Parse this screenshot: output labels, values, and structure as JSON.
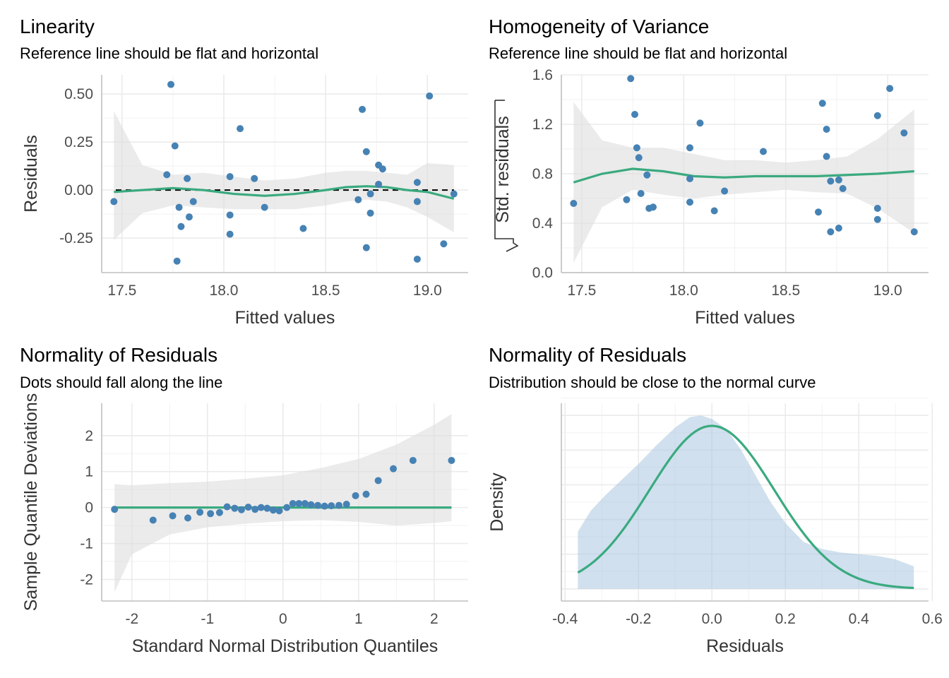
{
  "colors": {
    "point": "#4682b4",
    "line": "#3aaa7f",
    "ribbon": "#dddddd",
    "density_fill": "#a9c6e0",
    "reference": "#000000"
  },
  "chart_data": [
    {
      "type": "scatter",
      "title": "Linearity",
      "subtitle": "Reference line should be flat and horizontal",
      "xlabel": "Fitted values",
      "ylabel": "Residuals",
      "xlim": [
        17.4,
        19.2
      ],
      "ylim": [
        -0.43,
        0.6
      ],
      "xticks": [
        17.5,
        18.0,
        18.5,
        19.0
      ],
      "xtick_labels": [
        "17.5",
        "18.0",
        "18.5",
        "19.0"
      ],
      "yticks": [
        -0.25,
        0.0,
        0.25,
        0.5
      ],
      "ytick_labels": [
        "-0.25",
        "0.00",
        "0.25",
        "0.50"
      ],
      "reference_y": 0,
      "points": {
        "x": [
          17.46,
          17.74,
          17.72,
          17.76,
          17.77,
          17.78,
          17.79,
          17.82,
          17.83,
          17.85,
          18.03,
          18.03,
          18.03,
          18.08,
          18.15,
          18.2,
          18.39,
          18.66,
          18.68,
          18.7,
          18.7,
          18.72,
          18.72,
          18.76,
          18.76,
          18.78,
          18.95,
          18.95,
          18.95,
          19.01,
          19.08,
          19.13
        ],
        "y": [
          -0.06,
          0.55,
          0.08,
          0.23,
          -0.37,
          -0.09,
          -0.19,
          0.06,
          -0.14,
          -0.06,
          0.07,
          -0.13,
          -0.23,
          0.32,
          0.06,
          -0.09,
          -0.2,
          -0.05,
          0.42,
          0.2,
          -0.3,
          -0.02,
          -0.12,
          0.13,
          0.03,
          0.11,
          0.04,
          -0.06,
          -0.36,
          0.49,
          -0.28,
          -0.02
        ]
      },
      "smooth": {
        "x": [
          17.46,
          17.6,
          17.75,
          17.9,
          18.05,
          18.2,
          18.35,
          18.5,
          18.6,
          18.7,
          18.8,
          18.9,
          19.0,
          19.13
        ],
        "y": [
          -0.01,
          0.0,
          0.01,
          0.0,
          -0.02,
          -0.03,
          -0.02,
          0.0,
          0.015,
          0.02,
          0.015,
          0.0,
          -0.01,
          -0.045
        ],
        "lower": [
          -0.26,
          -0.12,
          -0.08,
          -0.09,
          -0.1,
          -0.1,
          -0.1,
          -0.08,
          -0.06,
          -0.05,
          -0.06,
          -0.09,
          -0.14,
          -0.22
        ],
        "upper": [
          0.41,
          0.13,
          0.08,
          0.09,
          0.07,
          0.05,
          0.06,
          0.09,
          0.1,
          0.1,
          0.09,
          0.08,
          0.14,
          0.13
        ]
      }
    },
    {
      "type": "scatter",
      "title": "Homogeneity of Variance",
      "subtitle": "Reference line should be flat and horizontal",
      "xlabel": "Fitted values",
      "ylabel": "Std. residuals",
      "xlim": [
        17.4,
        19.2
      ],
      "ylim": [
        0.0,
        1.6
      ],
      "xticks": [
        17.5,
        18.0,
        18.5,
        19.0
      ],
      "xtick_labels": [
        "17.5",
        "18.0",
        "18.5",
        "19.0"
      ],
      "yticks": [
        0.0,
        0.4,
        0.8,
        1.2,
        1.6
      ],
      "ytick_labels": [
        "0.0",
        "0.4",
        "0.8",
        "1.2",
        "1.6"
      ],
      "points": {
        "x": [
          17.46,
          17.72,
          17.74,
          17.76,
          17.77,
          17.78,
          17.79,
          17.82,
          17.83,
          17.85,
          18.03,
          18.03,
          18.03,
          18.08,
          18.15,
          18.2,
          18.39,
          18.66,
          18.68,
          18.7,
          18.7,
          18.72,
          18.72,
          18.76,
          18.76,
          18.78,
          18.95,
          18.95,
          18.95,
          19.01,
          19.08,
          19.13
        ],
        "y": [
          0.56,
          0.59,
          1.57,
          1.28,
          1.01,
          0.93,
          0.64,
          0.79,
          0.52,
          0.53,
          1.01,
          0.76,
          0.57,
          1.21,
          0.5,
          0.66,
          0.98,
          0.49,
          1.37,
          1.16,
          0.94,
          0.33,
          0.74,
          0.36,
          0.75,
          0.68,
          1.27,
          0.52,
          0.43,
          1.49,
          1.13,
          0.33
        ]
      },
      "smooth": {
        "x": [
          17.46,
          17.6,
          17.75,
          17.9,
          18.05,
          18.2,
          18.35,
          18.5,
          18.65,
          18.8,
          18.95,
          19.13
        ],
        "y": [
          0.73,
          0.8,
          0.84,
          0.82,
          0.78,
          0.77,
          0.78,
          0.78,
          0.78,
          0.79,
          0.8,
          0.82
        ],
        "lower": [
          0.08,
          0.53,
          0.67,
          0.63,
          0.6,
          0.63,
          0.65,
          0.67,
          0.65,
          0.64,
          0.52,
          0.32
        ],
        "upper": [
          1.38,
          1.07,
          1.01,
          1.01,
          0.96,
          0.91,
          0.91,
          0.89,
          0.91,
          0.94,
          1.08,
          1.32
        ]
      }
    },
    {
      "type": "scatter",
      "title": "Normality of Residuals",
      "subtitle": "Dots should fall along the line",
      "xlabel": "Standard Normal Distribution Quantiles",
      "ylabel": "Sample Quantile Deviations",
      "xlim": [
        -2.4,
        2.45
      ],
      "ylim": [
        -2.6,
        2.9
      ],
      "xticks": [
        -2,
        -1,
        0,
        1,
        2
      ],
      "xtick_labels": [
        "-2",
        "-1",
        "0",
        "1",
        "2"
      ],
      "yticks": [
        -2,
        -1,
        0,
        1,
        2
      ],
      "ytick_labels": [
        "-2",
        "-1",
        "0",
        "1",
        "2"
      ],
      "reference_y": 0,
      "points": {
        "x": [
          -2.23,
          -1.72,
          -1.46,
          -1.26,
          -1.1,
          -0.96,
          -0.84,
          -0.74,
          -0.64,
          -0.55,
          -0.46,
          -0.37,
          -0.29,
          -0.21,
          -0.13,
          -0.05,
          0.05,
          0.13,
          0.21,
          0.29,
          0.37,
          0.46,
          0.55,
          0.64,
          0.74,
          0.84,
          0.96,
          1.1,
          1.26,
          1.46,
          1.72,
          2.23
        ],
        "y": [
          -0.05,
          -0.35,
          -0.23,
          -0.29,
          -0.13,
          -0.17,
          -0.14,
          0.02,
          -0.02,
          -0.06,
          0.01,
          -0.05,
          0.0,
          -0.02,
          -0.07,
          -0.09,
          0.0,
          0.11,
          0.11,
          0.11,
          0.08,
          0.06,
          0.04,
          0.05,
          0.06,
          0.09,
          0.33,
          0.37,
          0.75,
          1.08,
          1.31,
          1.31
        ]
      },
      "band": {
        "x": [
          -2.23,
          -2.0,
          -1.5,
          -1.0,
          -0.5,
          0.0,
          0.5,
          1.0,
          1.5,
          2.0,
          2.23
        ],
        "lower": [
          -2.35,
          -1.3,
          -0.75,
          -0.55,
          -0.45,
          -0.38,
          -0.35,
          -0.4,
          -0.5,
          -0.43,
          -0.38
        ],
        "upper": [
          0.65,
          0.62,
          0.68,
          0.72,
          0.8,
          0.9,
          1.1,
          1.35,
          1.75,
          2.3,
          2.6
        ]
      },
      "fit_line": {
        "x": [
          -2.23,
          2.23
        ],
        "y": [
          0.0,
          0.0
        ]
      }
    },
    {
      "type": "area",
      "title": "Normality of Residuals",
      "subtitle": "Distribution should be close to the normal curve",
      "xlabel": "Residuals",
      "ylabel": "Density",
      "xlim": [
        -0.41,
        0.59
      ],
      "ylim": [
        -0.07,
        1.07
      ],
      "xticks": [
        -0.4,
        -0.2,
        0.0,
        0.2,
        0.4,
        0.6
      ],
      "xtick_labels": [
        "-0.4",
        "-0.2",
        "0.0",
        "0.2",
        "0.4",
        "0.6"
      ],
      "yticks": [],
      "ytick_labels": [],
      "density": {
        "x": [
          -0.365,
          -0.33,
          -0.29,
          -0.25,
          -0.2,
          -0.15,
          -0.1,
          -0.06,
          -0.03,
          0.0,
          0.04,
          0.08,
          0.12,
          0.16,
          0.2,
          0.25,
          0.3,
          0.35,
          0.4,
          0.45,
          0.5,
          0.55
        ],
        "y": [
          0.33,
          0.45,
          0.54,
          0.62,
          0.72,
          0.83,
          0.93,
          0.99,
          1.0,
          0.98,
          0.92,
          0.8,
          0.65,
          0.5,
          0.38,
          0.27,
          0.23,
          0.21,
          0.2,
          0.19,
          0.17,
          0.13
        ]
      },
      "normal_curve": {
        "mean": 0.0,
        "sd": 0.17,
        "peak": 0.94,
        "x_range": [
          -0.365,
          0.55
        ]
      }
    }
  ]
}
